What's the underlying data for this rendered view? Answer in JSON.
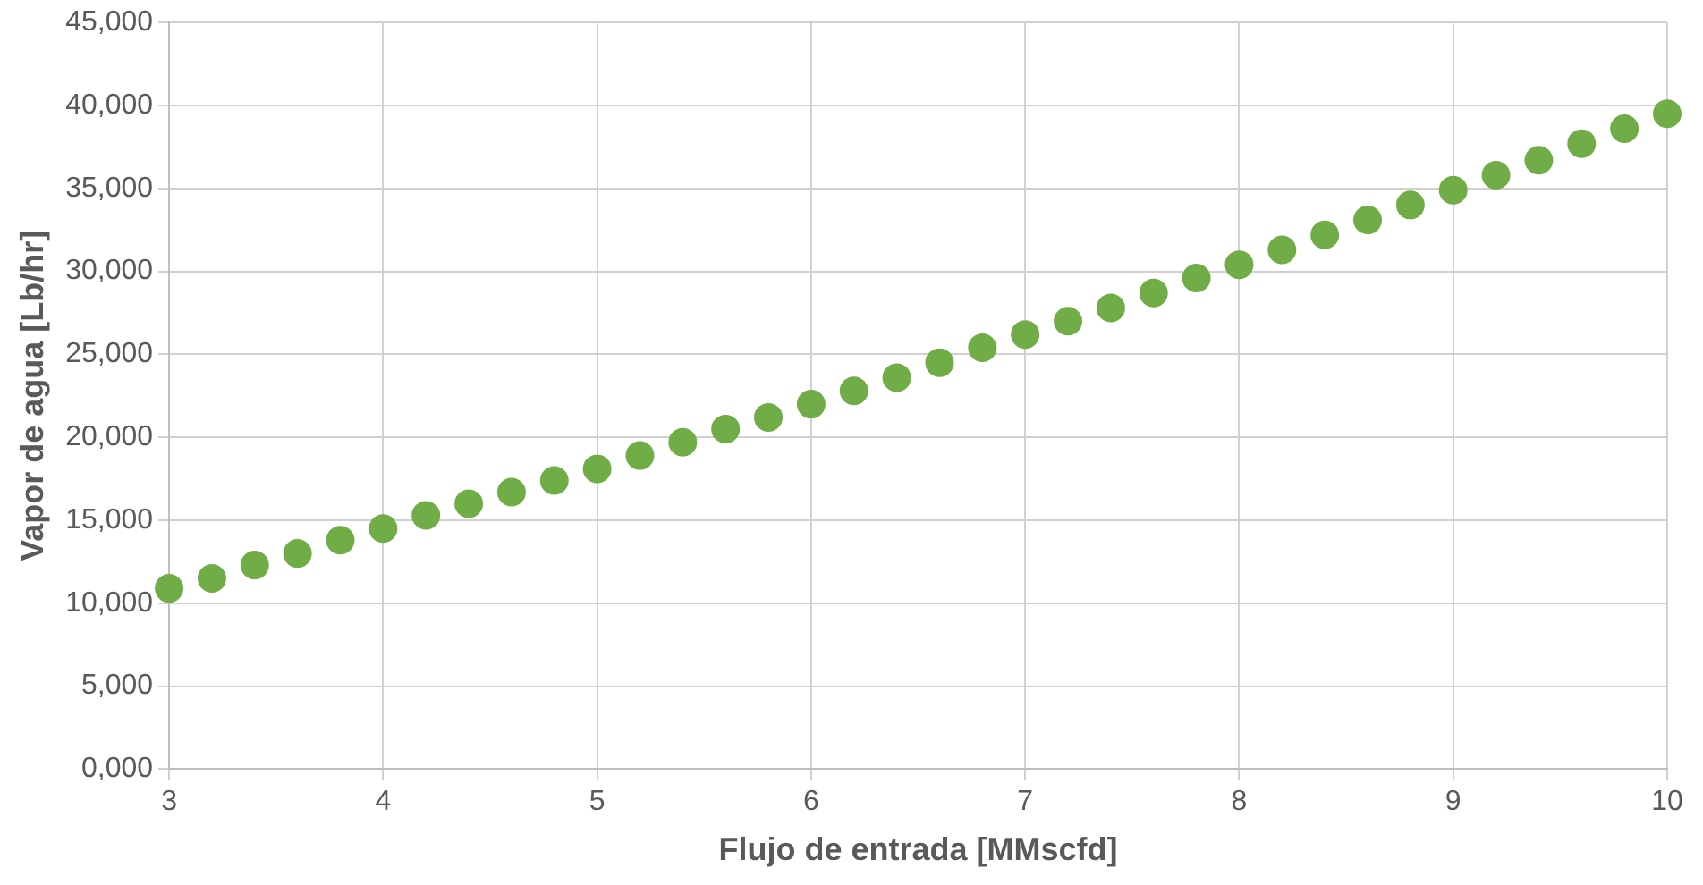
{
  "chart_data": {
    "type": "scatter",
    "xlabel": "Flujo de entrada [MMscfd]",
    "ylabel": "Vapor de agua [Lb/hr]",
    "x": [
      3,
      3.2,
      3.4,
      3.6,
      3.8,
      4,
      4.2,
      4.4,
      4.6,
      4.8,
      5,
      5.2,
      5.4,
      5.6,
      5.8,
      6,
      6.2,
      6.4,
      6.6,
      6.8,
      7,
      7.2,
      7.4,
      7.6,
      7.8,
      8,
      8.2,
      8.4,
      8.6,
      8.8,
      9,
      9.2,
      9.4,
      9.6,
      9.8,
      10
    ],
    "series": [
      {
        "color": "#70ad47",
        "values": [
          10900,
          11500,
          12300,
          13000,
          13800,
          14500,
          15300,
          16000,
          16700,
          17400,
          18100,
          18900,
          19700,
          20500,
          21200,
          22000,
          22800,
          23600,
          24500,
          25400,
          26200,
          27000,
          27800,
          28700,
          29600,
          30400,
          31300,
          32200,
          33100,
          34000,
          34900,
          35800,
          36700,
          37700,
          38600,
          39500
        ]
      }
    ],
    "xlim": [
      3,
      10
    ],
    "xticks": [
      3,
      4,
      5,
      6,
      7,
      8,
      9,
      10
    ],
    "ylim": [
      0,
      45000
    ],
    "yticks": [
      {
        "value": 0,
        "label": "0,000"
      },
      {
        "value": 5000,
        "label": "5,000"
      },
      {
        "value": 10000,
        "label": "10,000"
      },
      {
        "value": 15000,
        "label": "15,000"
      },
      {
        "value": 20000,
        "label": "20,000"
      },
      {
        "value": 25000,
        "label": "25,000"
      },
      {
        "value": 30000,
        "label": "30,000"
      },
      {
        "value": 35000,
        "label": "35,000"
      },
      {
        "value": 40000,
        "label": "40,000"
      },
      {
        "value": 45000,
        "label": "45,000"
      }
    ],
    "grid": true,
    "legend": false,
    "marker": "circle"
  }
}
